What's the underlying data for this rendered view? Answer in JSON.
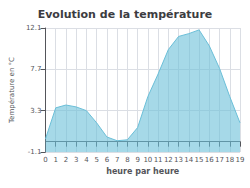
{
  "chart_data": {
    "type": "area",
    "title": "Evolution de la température",
    "xlabel": "heure par heure",
    "ylabel": "Température en °C",
    "x": [
      0,
      1,
      2,
      3,
      4,
      5,
      6,
      7,
      8,
      9,
      10,
      11,
      12,
      13,
      14,
      15,
      16,
      17,
      18,
      19
    ],
    "values": [
      0.3,
      3.6,
      3.9,
      3.7,
      3.3,
      2.0,
      0.5,
      0.1,
      0.2,
      1.5,
      4.8,
      7.2,
      9.8,
      11.2,
      11.5,
      11.9,
      10.2,
      7.8,
      4.8,
      2.0
    ],
    "color": "#6bbfd8",
    "xlim": [
      0,
      19
    ],
    "xticks": [
      0,
      1,
      2,
      3,
      4,
      5,
      6,
      7,
      8,
      9,
      10,
      11,
      12,
      13,
      14,
      15,
      16,
      17,
      18,
      19
    ],
    "ylim": [
      -1.1,
      12.1
    ],
    "yticks": [
      -1.1,
      3.3,
      7.7,
      12.1
    ],
    "grid": true
  }
}
